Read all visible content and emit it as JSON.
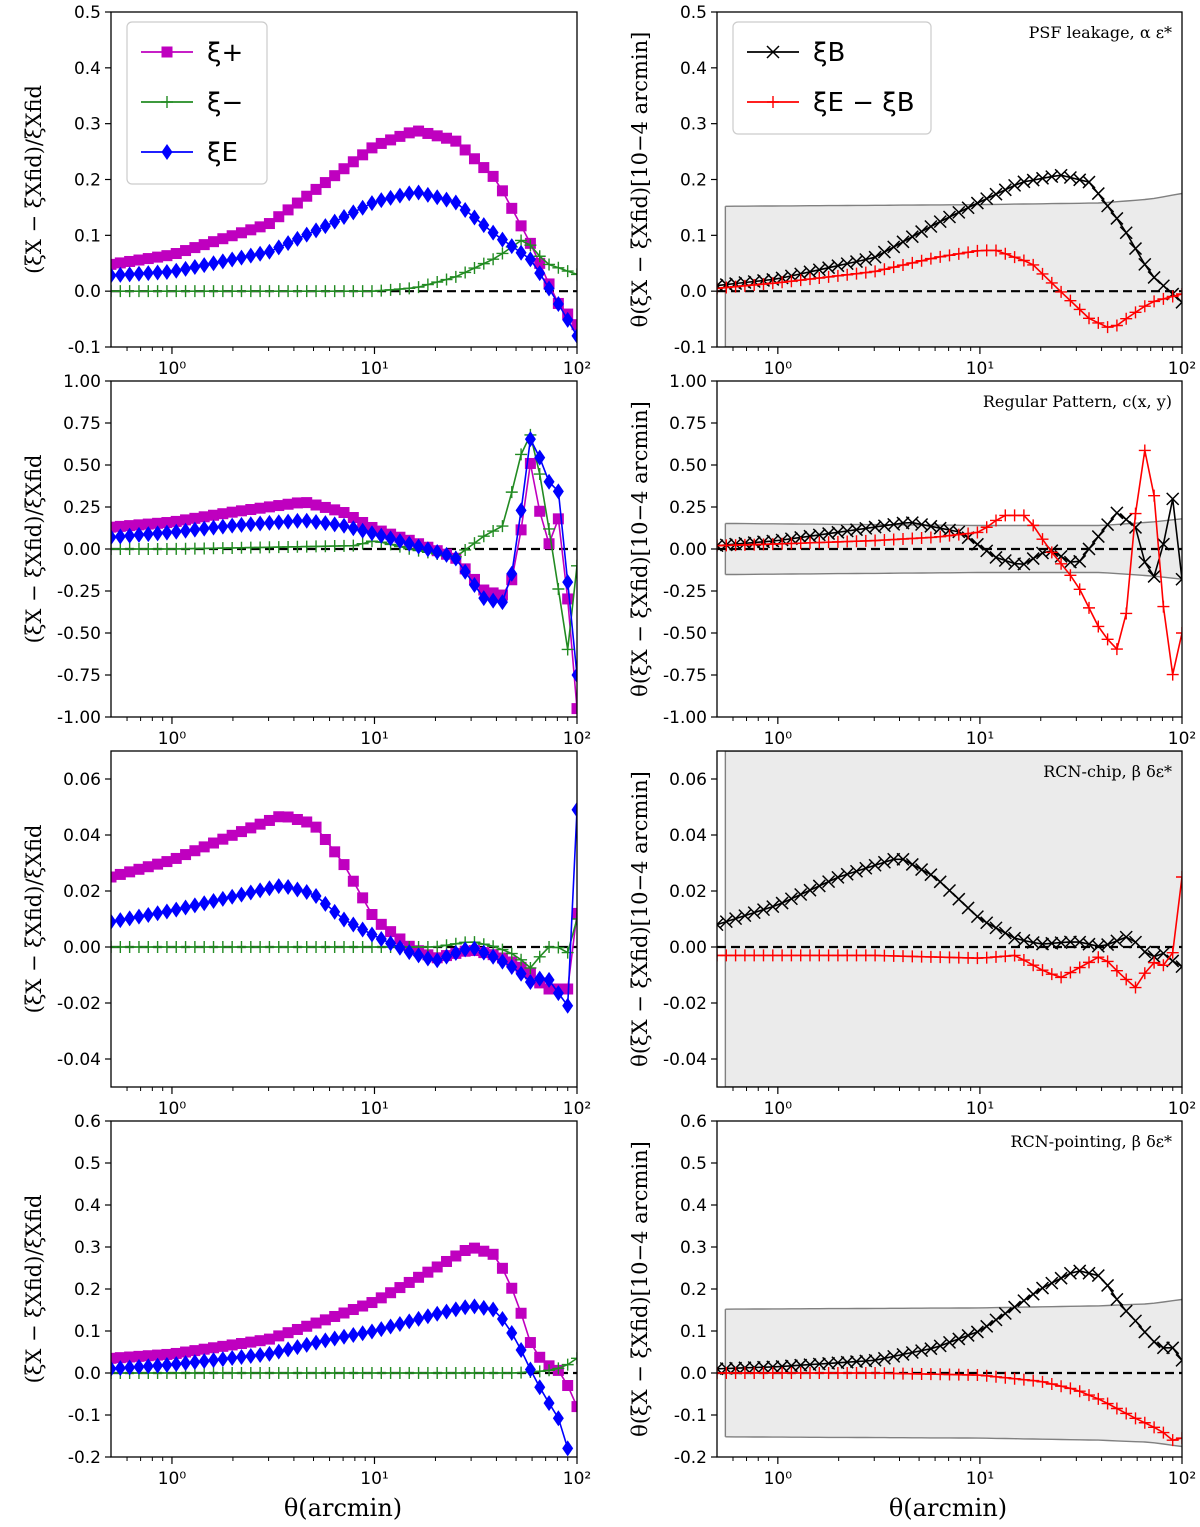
{
  "x_axis_label": "θ(arcmin)",
  "left_ylabel": "(ξX − ξXfid)/ξXfid",
  "right_ylabel": "θ(ξX − ξXfid)[10−4 arcmin]",
  "x_ticks": [
    "10⁰",
    "10¹",
    "10²"
  ],
  "colors": {
    "xi_plus": "#bf00bf",
    "xi_minus": "#228b22",
    "xi_E": "#0000ff",
    "xi_B": "#000000",
    "xi_EmB": "#ff0000",
    "band_fill": "#ebebeb",
    "band_edge": "#808080"
  },
  "legend_left": [
    "ξ+",
    "ξ−",
    "ξE"
  ],
  "legend_right": [
    "ξB",
    "ξE − ξB"
  ],
  "chart_data": [
    {
      "type": "line",
      "panel": "row1-left",
      "xscale": "log",
      "xlim": [
        0.5,
        100
      ],
      "ylim": [
        -0.1,
        0.5
      ],
      "yticks": [
        "0.5",
        "0.4",
        "0.3",
        "0.2",
        "0.1",
        "0.0",
        "-0.1"
      ],
      "series": [
        {
          "name": "ξ+",
          "x": [
            0.5,
            1,
            3,
            6,
            10,
            16,
            25,
            40,
            60,
            80,
            100
          ],
          "y": [
            0.048,
            0.065,
            0.12,
            0.2,
            0.26,
            0.288,
            0.27,
            0.2,
            0.08,
            -0.02,
            -0.06
          ]
        },
        {
          "name": "ξ−",
          "x": [
            0.5,
            1,
            3,
            6,
            10,
            16,
            25,
            40,
            55,
            70,
            100
          ],
          "y": [
            0.0,
            0.0,
            0.0,
            0.0,
            0.0,
            0.006,
            0.025,
            0.06,
            0.095,
            0.05,
            0.03
          ]
        },
        {
          "name": "ξE",
          "x": [
            0.5,
            1,
            3,
            6,
            10,
            16,
            25,
            40,
            60,
            80,
            100
          ],
          "y": [
            0.028,
            0.035,
            0.07,
            0.12,
            0.16,
            0.178,
            0.16,
            0.1,
            0.055,
            -0.02,
            -0.08
          ]
        }
      ]
    },
    {
      "type": "line",
      "panel": "row1-right",
      "xscale": "log",
      "xlim": [
        0.5,
        100
      ],
      "ylim": [
        -0.1,
        0.5
      ],
      "yticks": [
        "0.5",
        "0.4",
        "0.3",
        "0.2",
        "0.1",
        "0.0",
        "-0.1"
      ],
      "annotation": "PSF leakage, α ε*",
      "band_upper": {
        "x": [
          0.55,
          10,
          40,
          70,
          100
        ],
        "y": [
          0.152,
          0.155,
          0.158,
          0.165,
          0.175
        ]
      },
      "band_lower_y": -0.1,
      "series": [
        {
          "name": "ξB",
          "x": [
            0.5,
            1,
            3,
            6,
            10,
            16,
            25,
            35,
            50,
            70,
            100
          ],
          "y": [
            0.01,
            0.022,
            0.06,
            0.12,
            0.16,
            0.195,
            0.208,
            0.195,
            0.12,
            0.03,
            -0.02
          ]
        },
        {
          "name": "ξE − ξB",
          "x": [
            0.5,
            1,
            3,
            6,
            10,
            12,
            18,
            25,
            35,
            45,
            55,
            70,
            100
          ],
          "y": [
            0.005,
            0.015,
            0.035,
            0.06,
            0.073,
            0.073,
            0.05,
            0.0,
            -0.05,
            -0.068,
            -0.045,
            -0.02,
            -0.005
          ]
        }
      ]
    },
    {
      "type": "line",
      "panel": "row2-left",
      "xscale": "log",
      "xlim": [
        0.5,
        100
      ],
      "ylim": [
        -1.0,
        1.0
      ],
      "yticks": [
        "1.00",
        "0.75",
        "0.50",
        "0.25",
        "0.00",
        "-0.25",
        "-0.50",
        "-0.75",
        "-1.00"
      ],
      "series": [
        {
          "name": "ξ+",
          "x": [
            0.5,
            1,
            2,
            4.5,
            7,
            10,
            15,
            25,
            35,
            45,
            50,
            60,
            70,
            80,
            90,
            100
          ],
          "y": [
            0.13,
            0.16,
            0.22,
            0.28,
            0.22,
            0.12,
            0.05,
            -0.05,
            -0.25,
            -0.28,
            -0.1,
            0.58,
            -0.05,
            0.23,
            -0.3,
            -0.95
          ]
        },
        {
          "name": "ξ−",
          "x": [
            0.5,
            1,
            3,
            8,
            10,
            15,
            25,
            35,
            45,
            50,
            60,
            70,
            80,
            90,
            100
          ],
          "y": [
            0.0,
            0.0,
            0.01,
            0.02,
            0.05,
            0.0,
            -0.05,
            0.08,
            0.15,
            0.5,
            0.7,
            0.25,
            -0.2,
            -0.6,
            -0.1
          ]
        },
        {
          "name": "ξE",
          "x": [
            0.5,
            1,
            2,
            4.5,
            7,
            10,
            15,
            25,
            35,
            45,
            50,
            60,
            70,
            80,
            90,
            100
          ],
          "y": [
            0.07,
            0.1,
            0.14,
            0.17,
            0.14,
            0.09,
            0.03,
            -0.05,
            -0.3,
            -0.32,
            0.0,
            0.73,
            0.4,
            0.4,
            -0.2,
            -0.75
          ]
        }
      ]
    },
    {
      "type": "line",
      "panel": "row2-right",
      "xscale": "log",
      "xlim": [
        0.5,
        100
      ],
      "ylim": [
        -1.0,
        1.0
      ],
      "yticks": [
        "1.00",
        "0.75",
        "0.50",
        "0.25",
        "0.00",
        "-0.25",
        "-0.50",
        "-0.75",
        "-1.00"
      ],
      "annotation": "Regular Pattern, c(x, y)",
      "band_upper": {
        "x": [
          0.55,
          10,
          40,
          70,
          100
        ],
        "y": [
          0.152,
          0.14,
          0.14,
          0.16,
          0.18
        ]
      },
      "band_lower": {
        "x": [
          0.55,
          10,
          40,
          70,
          100
        ],
        "y": [
          -0.152,
          -0.14,
          -0.14,
          -0.16,
          -0.18
        ]
      },
      "series": [
        {
          "name": "ξB",
          "x": [
            0.5,
            1,
            2,
            4.5,
            8,
            12,
            16,
            22,
            30,
            40,
            48,
            60,
            70,
            80,
            90,
            100
          ],
          "y": [
            0.02,
            0.05,
            0.1,
            0.16,
            0.1,
            -0.05,
            -0.1,
            0.0,
            -0.1,
            0.1,
            0.22,
            0.12,
            -0.23,
            0.0,
            0.3,
            -0.18
          ]
        },
        {
          "name": "ξE − ξB",
          "x": [
            0.5,
            1,
            3,
            6,
            10,
            13,
            17,
            22,
            30,
            40,
            48,
            55,
            62,
            70,
            80,
            90,
            100
          ],
          "y": [
            0.02,
            0.03,
            0.05,
            0.07,
            0.1,
            0.2,
            0.2,
            0.0,
            -0.2,
            -0.5,
            -0.6,
            -0.3,
            0.6,
            0.57,
            -0.3,
            -0.75,
            -0.5
          ]
        }
      ]
    },
    {
      "type": "line",
      "panel": "row3-left",
      "xscale": "log",
      "xlim": [
        0.5,
        100
      ],
      "ylim": [
        -0.05,
        0.07
      ],
      "yticks": [
        "0.06",
        "0.04",
        "0.02",
        "0.00",
        "-0.02",
        "-0.04"
      ],
      "series": [
        {
          "name": "ξ+",
          "x": [
            0.5,
            1,
            2,
            3.5,
            5,
            7,
            10,
            15,
            20,
            30,
            40,
            50,
            60,
            70,
            80,
            90,
            100
          ],
          "y": [
            0.025,
            0.031,
            0.04,
            0.047,
            0.044,
            0.03,
            0.01,
            0.0,
            -0.004,
            -0.001,
            -0.003,
            -0.006,
            -0.01,
            -0.015,
            -0.015,
            -0.015,
            0.012
          ]
        },
        {
          "name": "ξ−",
          "x": [
            0.5,
            1,
            3,
            10,
            20,
            30,
            40,
            50,
            60,
            70,
            80,
            90,
            100
          ],
          "y": [
            0.0,
            0.0,
            0.0,
            0.0,
            0.0,
            0.002,
            0.0,
            -0.003,
            -0.008,
            0.0,
            0.0,
            -0.002,
            0.01
          ]
        },
        {
          "name": "ξE",
          "x": [
            0.5,
            1,
            2,
            3.5,
            5,
            7,
            10,
            15,
            20,
            30,
            40,
            50,
            60,
            70,
            80,
            90,
            100
          ],
          "y": [
            0.009,
            0.013,
            0.018,
            0.022,
            0.019,
            0.01,
            0.004,
            -0.002,
            -0.005,
            0.0,
            -0.004,
            -0.008,
            -0.013,
            -0.01,
            -0.016,
            -0.021,
            0.049
          ]
        }
      ]
    },
    {
      "type": "line",
      "panel": "row3-right",
      "xscale": "log",
      "xlim": [
        0.5,
        100
      ],
      "ylim": [
        -0.05,
        0.07
      ],
      "yticks": [
        "0.06",
        "0.04",
        "0.02",
        "0.00",
        "-0.02",
        "-0.04"
      ],
      "annotation": "RCN-chip, β δε*",
      "band_upper_y": 0.07,
      "band_lower_y": -0.05,
      "series": [
        {
          "name": "ξB",
          "x": [
            0.5,
            1,
            2,
            4,
            6,
            10,
            15,
            20,
            30,
            40,
            55,
            70,
            80,
            90,
            100
          ],
          "y": [
            0.008,
            0.015,
            0.025,
            0.032,
            0.025,
            0.01,
            0.003,
            0.001,
            0.002,
            0.0,
            0.004,
            -0.004,
            -0.002,
            -0.005,
            -0.007
          ]
        },
        {
          "name": "ξE − ξB",
          "x": [
            0.5,
            1,
            3,
            10,
            15,
            20,
            25,
            30,
            40,
            50,
            60,
            70,
            80,
            90,
            100
          ],
          "y": [
            -0.003,
            -0.003,
            -0.003,
            -0.004,
            -0.003,
            -0.008,
            -0.011,
            -0.008,
            -0.003,
            -0.01,
            -0.015,
            -0.005,
            -0.007,
            -0.002,
            0.025
          ]
        }
      ]
    },
    {
      "type": "line",
      "panel": "row4-left",
      "xscale": "log",
      "xlim": [
        0.5,
        100
      ],
      "ylim": [
        -0.2,
        0.6
      ],
      "yticks": [
        "0.6",
        "0.5",
        "0.4",
        "0.3",
        "0.2",
        "0.1",
        "0.0",
        "-0.1",
        "-0.2"
      ],
      "series": [
        {
          "name": "ξ+",
          "x": [
            0.5,
            1,
            3,
            6,
            10,
            20,
            30,
            40,
            50,
            60,
            70,
            80,
            90,
            100
          ],
          "y": [
            0.035,
            0.045,
            0.08,
            0.13,
            0.17,
            0.25,
            0.3,
            0.28,
            0.18,
            0.06,
            0.02,
            0.01,
            -0.03,
            -0.08
          ]
        },
        {
          "name": "ξ−",
          "x": [
            0.5,
            1,
            10,
            50,
            70,
            80,
            90,
            100
          ],
          "y": [
            0.0,
            0.0,
            0.0,
            0.0,
            0.005,
            0.01,
            0.02,
            0.035
          ]
        },
        {
          "name": "ξE",
          "x": [
            0.5,
            1,
            3,
            6,
            10,
            20,
            30,
            40,
            50,
            60,
            70,
            80,
            90
          ],
          "y": [
            0.01,
            0.02,
            0.045,
            0.08,
            0.1,
            0.14,
            0.16,
            0.15,
            0.08,
            0.0,
            -0.06,
            -0.1,
            -0.18
          ]
        }
      ]
    },
    {
      "type": "line",
      "panel": "row4-right",
      "xscale": "log",
      "xlim": [
        0.5,
        100
      ],
      "ylim": [
        -0.2,
        0.6
      ],
      "yticks": [
        "0.6",
        "0.5",
        "0.4",
        "0.3",
        "0.2",
        "0.1",
        "0.0",
        "-0.1",
        "-0.2"
      ],
      "annotation": "RCN-pointing, β δε*",
      "band_upper": {
        "x": [
          0.55,
          10,
          40,
          70,
          100
        ],
        "y": [
          0.152,
          0.155,
          0.16,
          0.165,
          0.175
        ]
      },
      "band_lower": {
        "x": [
          0.55,
          10,
          40,
          70,
          100
        ],
        "y": [
          -0.152,
          -0.155,
          -0.16,
          -0.165,
          -0.175
        ]
      },
      "series": [
        {
          "name": "ξB",
          "x": [
            0.5,
            1,
            3,
            6,
            10,
            20,
            30,
            40,
            50,
            60,
            70,
            80,
            90,
            100
          ],
          "y": [
            0.01,
            0.015,
            0.03,
            0.06,
            0.1,
            0.2,
            0.245,
            0.23,
            0.16,
            0.12,
            0.08,
            0.06,
            0.06,
            0.03
          ]
        },
        {
          "name": "ξE − ξB",
          "x": [
            0.5,
            1,
            3,
            10,
            20,
            30,
            40,
            50,
            60,
            70,
            80,
            90,
            100
          ],
          "y": [
            0.0,
            0.0,
            0.0,
            -0.005,
            -0.02,
            -0.04,
            -0.065,
            -0.09,
            -0.11,
            -0.125,
            -0.14,
            -0.16,
            -0.155
          ]
        }
      ]
    }
  ]
}
